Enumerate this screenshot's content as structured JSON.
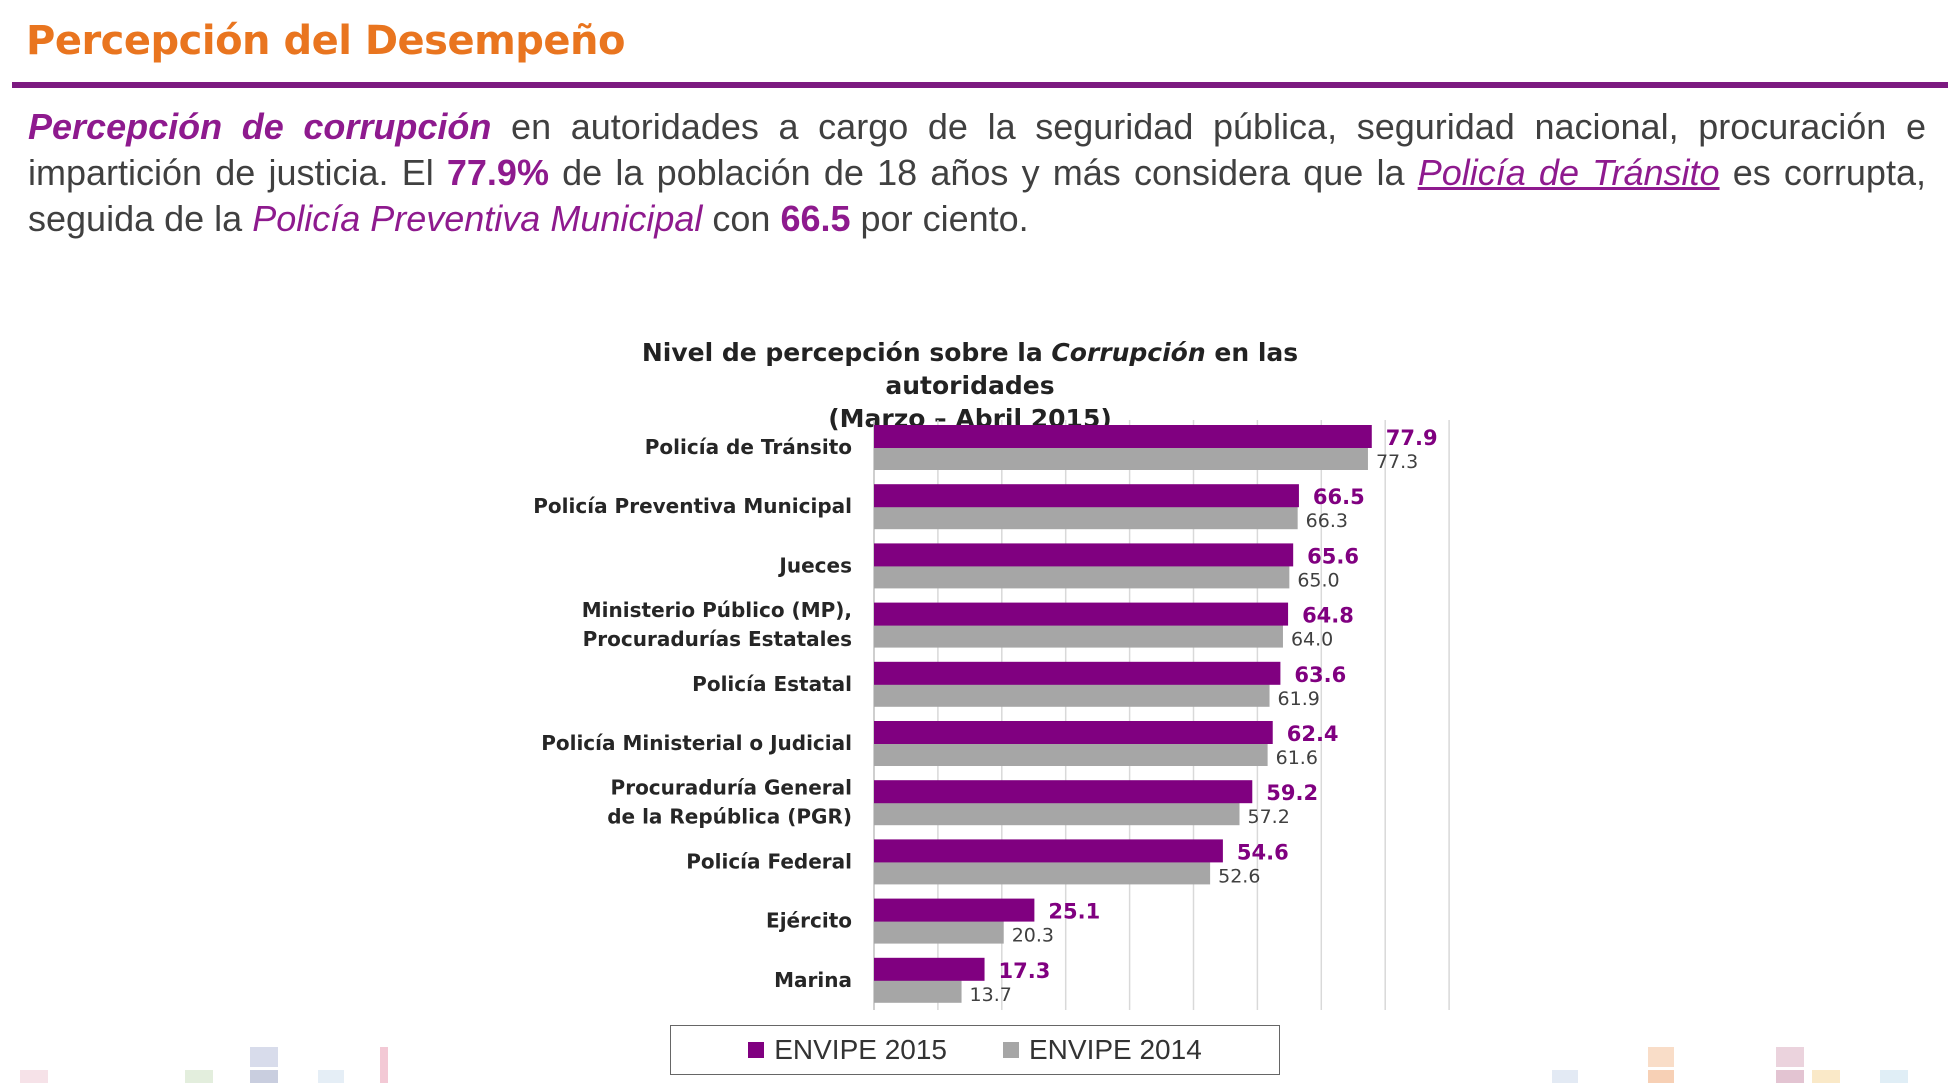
{
  "header": {
    "title": "Percepción del Desempeño"
  },
  "intro": {
    "term": "Percepción de corrupción",
    "t1": " en autoridades a cargo de la seguridad pública, seguridad nacional, procuración e impartición de justicia. El ",
    "pct": "77.9%",
    "t2": " de la población de 18 años y más considera que la ",
    "link": "Policía de Tránsito",
    "t3": " es corrupta, seguida de la ",
    "second": "Policía Preventiva Municipal",
    "t4": " con ",
    "second_value": "66.5",
    "t5": " por ciento."
  },
  "chart_data": {
    "type": "bar",
    "orientation": "horizontal",
    "title_part1": "Nivel de percepción sobre la ",
    "title_italic": "Corrupción",
    "title_part2": " en las autoridades",
    "subtitle": "(Marzo – Abril 2015)",
    "categories": [
      "Policía de Tránsito",
      "Policía Preventiva Municipal",
      "Jueces",
      "Ministerio Público (MP), Procuradurías Estatales",
      "Policía Estatal",
      "Policía Ministerial o Judicial",
      "Procuraduría General de la República (PGR)",
      "Policía Federal",
      "Ejército",
      "Marina"
    ],
    "category_lines": [
      [
        "Policía de Tránsito"
      ],
      [
        "Policía Preventiva Municipal"
      ],
      [
        "Jueces"
      ],
      [
        "Ministerio Público (MP),",
        "Procuradurías Estatales"
      ],
      [
        "Policía Estatal"
      ],
      [
        "Policía Ministerial o Judicial"
      ],
      [
        "Procuraduría General",
        "de la República (PGR)"
      ],
      [
        "Policía Federal"
      ],
      [
        "Ejército"
      ],
      [
        "Marina"
      ]
    ],
    "series": [
      {
        "name": "ENVIPE 2015",
        "color": "#800080",
        "label_color": "#800080",
        "values": [
          77.9,
          66.5,
          65.6,
          64.8,
          63.6,
          62.4,
          59.2,
          54.6,
          25.1,
          17.3
        ]
      },
      {
        "name": "ENVIPE 2014",
        "color": "#A6A6A6",
        "label_color": "#404040",
        "values": [
          77.3,
          66.3,
          65.0,
          64.0,
          61.9,
          61.6,
          57.2,
          52.6,
          20.3,
          13.7
        ]
      }
    ],
    "xlim": [
      0,
      90
    ],
    "grid_step": 10,
    "grid": true,
    "legend_position": "bottom"
  }
}
